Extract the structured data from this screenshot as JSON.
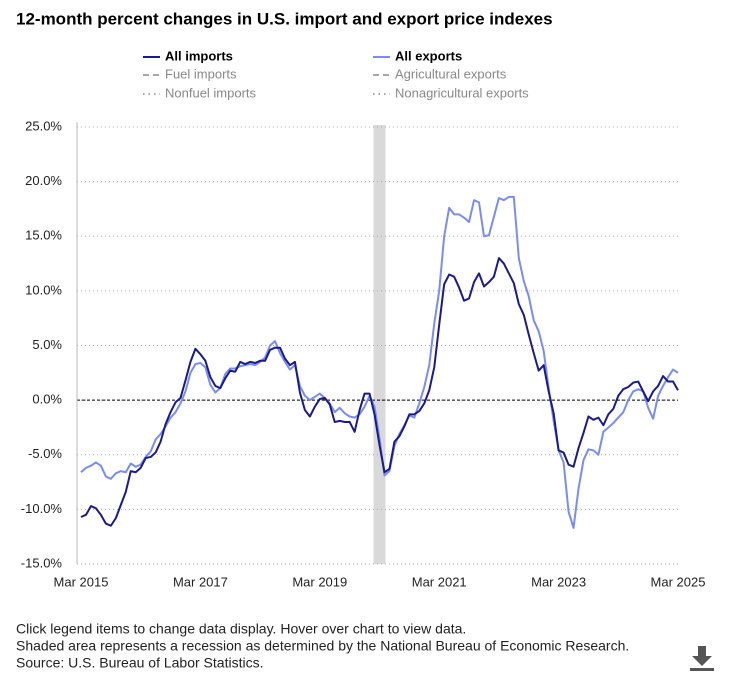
{
  "chart_data": {
    "type": "line",
    "title": "12-month percent changes in U.S. import and export price indexes",
    "categories": [
      "Mar 2015",
      null,
      null,
      null,
      null,
      null,
      null,
      null,
      null,
      null,
      null,
      null,
      null,
      null,
      null,
      null,
      null,
      null,
      null,
      null,
      null,
      null,
      null,
      null,
      "Mar 2017",
      null,
      null,
      null,
      null,
      null,
      null,
      null,
      null,
      null,
      null,
      null,
      null,
      null,
      null,
      null,
      null,
      null,
      null,
      null,
      null,
      null,
      null,
      null,
      "Mar 2019",
      null,
      null,
      null,
      null,
      null,
      null,
      null,
      null,
      null,
      null,
      null,
      null,
      null,
      null,
      null,
      null,
      null,
      null,
      null,
      null,
      null,
      null,
      null,
      "Mar 2021",
      null,
      null,
      null,
      null,
      null,
      null,
      null,
      null,
      null,
      null,
      null,
      null,
      null,
      null,
      null,
      null,
      null,
      null,
      null,
      null,
      null,
      null,
      null,
      "Mar 2023",
      null,
      null,
      null,
      null,
      null,
      null,
      null,
      null,
      null,
      null,
      null,
      null,
      null,
      null,
      null,
      null,
      null,
      null,
      null,
      null,
      null,
      null,
      null,
      "Mar 2025"
    ],
    "series": [
      {
        "name": "All imports",
        "color": "#1b1a8a",
        "values": [
          -10.7,
          -10.5,
          -9.7,
          -9.9,
          -10.5,
          -11.3,
          -11.5,
          -10.8,
          -9.6,
          -8.4,
          -6.5,
          -6.6,
          -6.2,
          -5.3,
          -5.2,
          -4.8,
          -3.8,
          -2.2,
          -1.1,
          -0.2,
          0.2,
          1.8,
          3.5,
          4.7,
          4.2,
          3.6,
          2.1,
          1.3,
          1.1,
          2.0,
          2.7,
          2.6,
          3.5,
          3.3,
          3.5,
          3.4,
          3.6,
          3.6,
          4.6,
          4.8,
          4.8,
          3.8,
          3.2,
          3.5,
          0.7,
          -0.9,
          -1.5,
          -0.6,
          0.1,
          0.2,
          -0.4,
          -2.0,
          -1.9,
          -2.0,
          -2.0,
          -2.9,
          -0.9,
          0.6,
          0.6,
          -1.3,
          -4.1,
          -6.6,
          -6.3,
          -3.8,
          -3.3,
          -2.4,
          -1.3,
          -1.3,
          -1.0,
          -0.3,
          0.9,
          3.0,
          6.9,
          10.6,
          11.5,
          11.3,
          10.3,
          9.1,
          9.3,
          10.8,
          11.6,
          10.4,
          10.8,
          11.3,
          13.0,
          12.5,
          11.6,
          10.7,
          8.8,
          7.8,
          6.0,
          4.3,
          2.7,
          3.2,
          0.8,
          -1.2,
          -4.6,
          -4.8,
          -5.9,
          -6.1,
          -4.4,
          -3.0,
          -1.5,
          -1.8,
          -1.6,
          -2.3,
          -1.3,
          -0.8,
          0.4,
          1.0,
          1.2,
          1.6,
          1.7,
          0.8,
          -0.1,
          0.8,
          1.3,
          2.2,
          1.7,
          1.7,
          0.9
        ]
      },
      {
        "name": "All exports",
        "color": "#7b8cf0",
        "values": [
          -6.6,
          -6.2,
          -6.0,
          -5.7,
          -6.0,
          -7.0,
          -7.2,
          -6.7,
          -6.5,
          -6.6,
          -5.8,
          -6.1,
          -5.9,
          -5.2,
          -4.7,
          -3.6,
          -3.1,
          -2.4,
          -1.6,
          -1.1,
          -0.3,
          0.8,
          2.5,
          3.3,
          3.4,
          3.0,
          1.4,
          0.7,
          1.1,
          2.4,
          2.9,
          2.9,
          3.1,
          3.2,
          3.3,
          3.2,
          3.5,
          3.9,
          5.0,
          5.4,
          4.3,
          3.5,
          2.8,
          3.2,
          1.3,
          0.4,
          0.0,
          0.3,
          0.6,
          0.2,
          -0.3,
          -1.1,
          -0.7,
          -1.2,
          -1.5,
          -1.6,
          -1.3,
          -0.6,
          0.4,
          -0.6,
          -3.5,
          -6.9,
          -6.5,
          -4.2,
          -3.1,
          -2.3,
          -1.4,
          -1.6,
          -0.3,
          1.2,
          3.2,
          7.0,
          10.0,
          15.0,
          17.6,
          17.0,
          17.0,
          16.7,
          16.3,
          18.3,
          18.1,
          15.0,
          15.1,
          16.8,
          18.5,
          18.3,
          18.6,
          18.6,
          13.0,
          10.9,
          9.5,
          7.3,
          6.3,
          4.5,
          1.1,
          -1.9,
          -4.6,
          -5.7,
          -10.2,
          -11.7,
          -8.1,
          -5.5,
          -4.5,
          -4.6,
          -5.0,
          -2.9,
          -2.5,
          -2.1,
          -1.6,
          -1.1,
          0.0,
          0.8,
          1.0,
          0.8,
          -0.7,
          -1.7,
          0.4,
          1.3,
          2.1,
          2.8,
          2.5
        ]
      }
    ],
    "inactive_legend": [
      {
        "name": "Fuel imports",
        "dash": "dashed"
      },
      {
        "name": "Agricultural exports",
        "dash": "dashed"
      },
      {
        "name": "Nonfuel imports",
        "dash": "dotted"
      },
      {
        "name": "Nonagricultural exports",
        "dash": "dotted"
      }
    ],
    "recession": [
      59,
      61
    ],
    "ylim": [
      -15,
      25
    ],
    "yticks": [
      {
        "value": -15,
        "label": "-15.0%"
      },
      {
        "value": -10,
        "label": "-10.0%"
      },
      {
        "value": -5,
        "label": "-5.0%"
      },
      {
        "value": 0,
        "label": "0.0%"
      },
      {
        "value": 5,
        "label": "5.0%"
      },
      {
        "value": 10,
        "label": "10.0%"
      },
      {
        "value": 15,
        "label": "15.0%"
      },
      {
        "value": 20,
        "label": "20.0%"
      },
      {
        "value": 25,
        "label": "25.0%"
      }
    ],
    "grid": true,
    "notes": [
      "Click legend items to change data display. Hover over chart to view data.",
      "Shaded area represents a recession as determined by the National Bureau of Economic Research.",
      "Source: U.S. Bureau of Labor Statistics."
    ]
  }
}
